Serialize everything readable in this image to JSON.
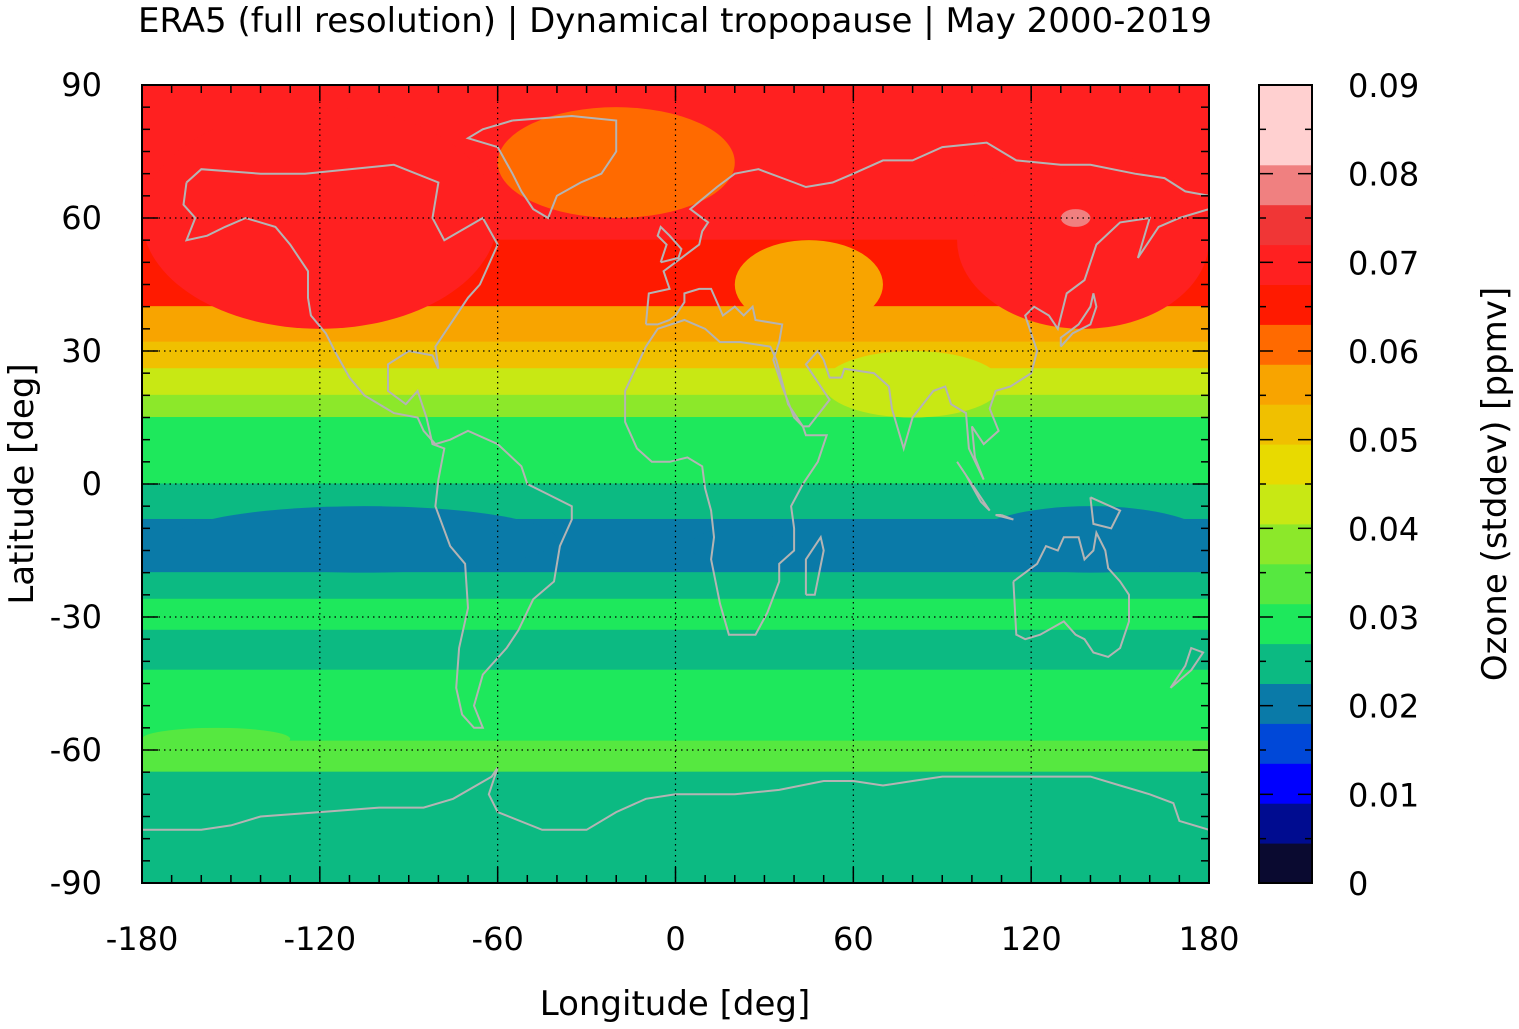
{
  "title": "ERA5 (full resolution) | Dynamical tropopause | May 2000-2019",
  "chart_data": {
    "type": "heatmap",
    "title": "ERA5 (full resolution) | Dynamical tropopause | May 2000-2019",
    "xlabel": "Longitude [deg]",
    "ylabel": "Latitude [deg]",
    "xlim": [
      -180,
      180
    ],
    "ylim": [
      -90,
      90
    ],
    "xticks": [
      -180,
      -120,
      -60,
      0,
      60,
      120,
      180
    ],
    "yticks": [
      90,
      60,
      30,
      0,
      -30,
      -60,
      -90
    ],
    "xtick_labels": [
      "-180",
      "-120",
      "-60",
      "0",
      "60",
      "120",
      "180"
    ],
    "ytick_labels": [
      "90",
      "60",
      "30",
      "0",
      "-30",
      "-60",
      "-90"
    ],
    "grid": true,
    "coastlines": true,
    "colorbar": {
      "label": "Ozone (stddev) [ppmv]",
      "range": [
        0,
        0.09
      ],
      "ticks": [
        0,
        0.01,
        0.02,
        0.03,
        0.04,
        0.05,
        0.06,
        0.07,
        0.08,
        0.09
      ],
      "tick_labels": [
        "0",
        "0.01",
        "0.02",
        "0.03",
        "0.04",
        "0.05",
        "0.06",
        "0.07",
        "0.08",
        "0.09"
      ],
      "levels": [
        {
          "min": 0.0,
          "max": 0.0045,
          "color": "#0a0a30"
        },
        {
          "min": 0.0045,
          "max": 0.009,
          "color": "#000c90"
        },
        {
          "min": 0.009,
          "max": 0.0135,
          "color": "#0000ff"
        },
        {
          "min": 0.0135,
          "max": 0.018,
          "color": "#0048d8"
        },
        {
          "min": 0.018,
          "max": 0.0225,
          "color": "#0a7aa8"
        },
        {
          "min": 0.0225,
          "max": 0.027,
          "color": "#0cba82"
        },
        {
          "min": 0.027,
          "max": 0.0315,
          "color": "#1ee85c"
        },
        {
          "min": 0.0315,
          "max": 0.036,
          "color": "#56e840"
        },
        {
          "min": 0.036,
          "max": 0.0405,
          "color": "#8ce82a"
        },
        {
          "min": 0.0405,
          "max": 0.045,
          "color": "#c8e814"
        },
        {
          "min": 0.045,
          "max": 0.0495,
          "color": "#e8da00"
        },
        {
          "min": 0.0495,
          "max": 0.054,
          "color": "#f0c000"
        },
        {
          "min": 0.054,
          "max": 0.0585,
          "color": "#f8a400"
        },
        {
          "min": 0.0585,
          "max": 0.063,
          "color": "#ff6a00"
        },
        {
          "min": 0.063,
          "max": 0.0675,
          "color": "#ff1a00"
        },
        {
          "min": 0.0675,
          "max": 0.072,
          "color": "#ff2020"
        },
        {
          "min": 0.072,
          "max": 0.0765,
          "color": "#f03636"
        },
        {
          "min": 0.0765,
          "max": 0.081,
          "color": "#f08080"
        },
        {
          "min": 0.081,
          "max": 0.09,
          "color": "#ffd0d0"
        }
      ]
    },
    "zonal_bands": [
      {
        "lat_from": 90,
        "lat_to": 75,
        "value": 0.07
      },
      {
        "lat_from": 75,
        "lat_to": 55,
        "value": 0.068
      },
      {
        "lat_from": 55,
        "lat_to": 40,
        "value": 0.064
      },
      {
        "lat_from": 40,
        "lat_to": 32,
        "value": 0.058
      },
      {
        "lat_from": 32,
        "lat_to": 26,
        "value": 0.052
      },
      {
        "lat_from": 26,
        "lat_to": 20,
        "value": 0.044
      },
      {
        "lat_from": 20,
        "lat_to": 15,
        "value": 0.037
      },
      {
        "lat_from": 15,
        "lat_to": 0,
        "value": 0.03
      },
      {
        "lat_from": 0,
        "lat_to": -8,
        "value": 0.025
      },
      {
        "lat_from": -8,
        "lat_to": -20,
        "value": 0.021
      },
      {
        "lat_from": -20,
        "lat_to": -26,
        "value": 0.025
      },
      {
        "lat_from": -26,
        "lat_to": -33,
        "value": 0.03
      },
      {
        "lat_from": -33,
        "lat_to": -42,
        "value": 0.026
      },
      {
        "lat_from": -42,
        "lat_to": -58,
        "value": 0.03
      },
      {
        "lat_from": -58,
        "lat_to": -65,
        "value": 0.033
      },
      {
        "lat_from": -65,
        "lat_to": -90,
        "value": 0.025
      }
    ],
    "regional_features": [
      {
        "lon_from": -180,
        "lon_to": -60,
        "lat_from": 85,
        "lat_to": 35,
        "value": 0.068
      },
      {
        "lon_from": -60,
        "lon_to": 20,
        "lat_from": 85,
        "lat_to": 60,
        "value": 0.059
      },
      {
        "lon_from": 20,
        "lon_to": 70,
        "lat_from": 55,
        "lat_to": 35,
        "value": 0.056
      },
      {
        "lon_from": 50,
        "lon_to": 110,
        "lat_from": 30,
        "lat_to": 15,
        "value": 0.044
      },
      {
        "lon_from": 95,
        "lon_to": 180,
        "lat_from": 75,
        "lat_to": 35,
        "value": 0.069
      },
      {
        "lon_from": 130,
        "lon_to": 140,
        "lat_from": 62,
        "lat_to": 58,
        "value": 0.078
      },
      {
        "lon_from": -170,
        "lon_to": -40,
        "lat_from": -5,
        "lat_to": -20,
        "value": 0.021
      },
      {
        "lon_from": 100,
        "lon_to": 180,
        "lat_from": -5,
        "lat_to": -20,
        "value": 0.021
      },
      {
        "lon_from": 5,
        "lon_to": 35,
        "lat_from": -10,
        "lat_to": -18,
        "value": 0.021
      },
      {
        "lon_from": -180,
        "lon_to": -130,
        "lat_from": -55,
        "lat_to": -60,
        "value": 0.033
      }
    ]
  }
}
